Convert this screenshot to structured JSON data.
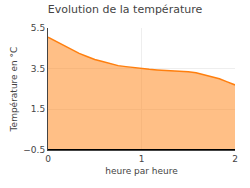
{
  "chart_data": {
    "type": "area",
    "title": "Evolution de la température",
    "xlabel": "heure par heure",
    "ylabel": "Température en °C",
    "x": [
      0.0,
      0.083,
      0.167,
      0.25,
      0.333,
      0.417,
      0.5,
      0.583,
      0.667,
      0.75,
      0.833,
      0.917,
      1.0,
      1.083,
      1.167,
      1.25,
      1.333,
      1.417,
      1.5,
      1.583,
      1.667,
      1.75,
      1.833,
      1.917,
      2.0
    ],
    "values": [
      5.05,
      4.85,
      4.65,
      4.45,
      4.25,
      4.1,
      3.95,
      3.85,
      3.75,
      3.65,
      3.6,
      3.55,
      3.5,
      3.47,
      3.44,
      3.42,
      3.4,
      3.38,
      3.35,
      3.3,
      3.2,
      3.1,
      3.0,
      2.85,
      2.7
    ],
    "baseline": -0.5,
    "xlim": [
      0,
      2
    ],
    "ylim": [
      -0.5,
      5.5
    ],
    "xticks": [
      0,
      1,
      2
    ],
    "yticks": [
      -0.5,
      1.5,
      3.5,
      5.5
    ],
    "grid": true
  }
}
